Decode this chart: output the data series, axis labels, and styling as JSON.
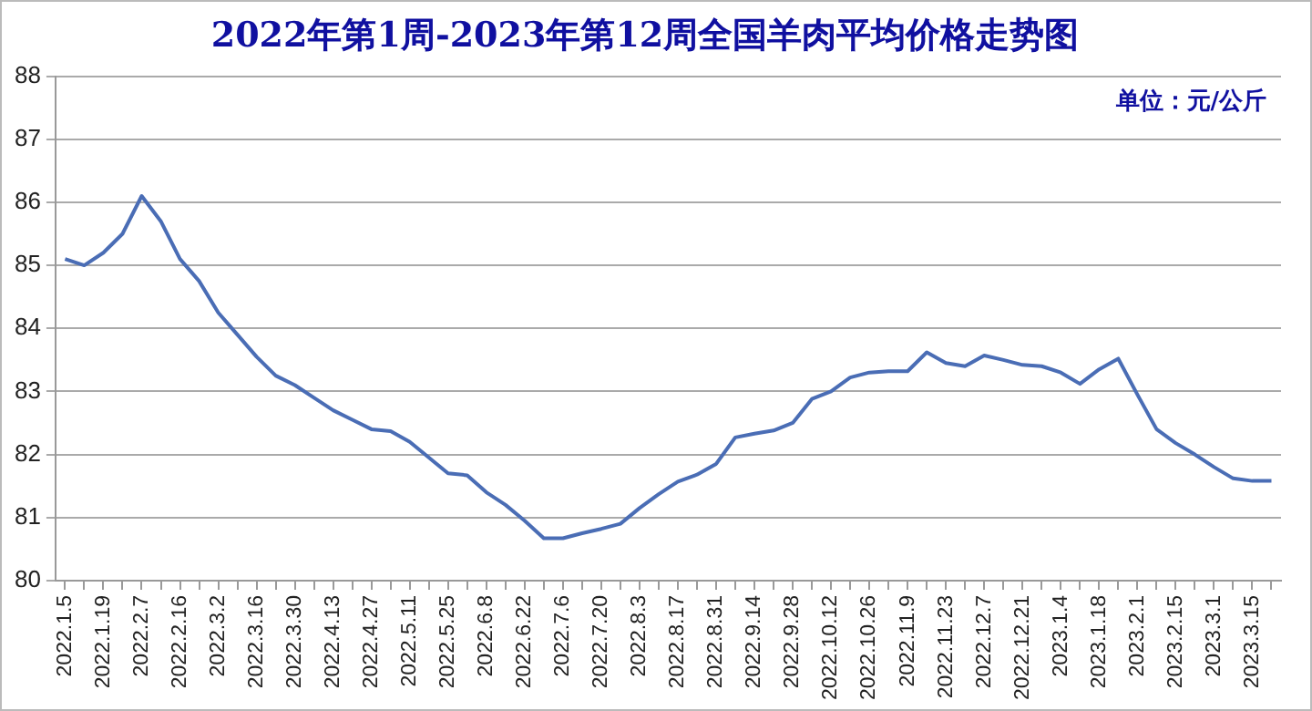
{
  "chart_data": {
    "type": "line",
    "title": "2022年第1周-2023年第12周全国羊肉平均价格走势图",
    "annotations": [
      "单位：元/公斤"
    ],
    "categories": [
      "2022.1.5",
      null,
      "2022.1.19",
      null,
      "2022.2.7",
      null,
      "2022.2.16",
      null,
      "2022.3.2",
      null,
      "2022.3.16",
      null,
      "2022.3.30",
      null,
      "2022.4.13",
      null,
      "2022.4.27",
      null,
      "2022.5.11",
      null,
      "2022.5.25",
      null,
      "2022.6.8",
      null,
      "2022.6.22",
      null,
      "2022.7.6",
      null,
      "2022.7.20",
      null,
      "2022.8.3",
      null,
      "2022.8.17",
      null,
      "2022.8.31",
      null,
      "2022.9.14",
      null,
      "2022.9.28",
      null,
      "2022.10.12",
      null,
      "2022.10.26",
      null,
      "2022.11.9",
      null,
      "2022.11.23",
      null,
      "2022.12.7",
      null,
      "2022.12.21",
      null,
      "2023.1.4",
      null,
      "2023.1.18",
      null,
      "2023.2.1",
      null,
      "2023.2.15",
      null,
      "2023.3.1",
      null,
      "2023.3.15",
      null
    ],
    "series": [
      {
        "color": "#4a6db5",
        "values": [
          85.1,
          85.0,
          85.2,
          85.5,
          86.1,
          85.7,
          85.1,
          84.75,
          84.25,
          83.9,
          83.55,
          83.25,
          83.1,
          82.9,
          82.7,
          82.55,
          82.4,
          82.37,
          82.2,
          81.95,
          81.7,
          81.67,
          81.4,
          81.2,
          80.95,
          80.67,
          80.67,
          80.75,
          80.82,
          80.9,
          81.15,
          81.37,
          81.57,
          81.68,
          81.85,
          82.27,
          82.33,
          82.38,
          82.5,
          82.88,
          83.0,
          83.22,
          83.3,
          83.32,
          83.32,
          83.62,
          83.45,
          83.4,
          83.57,
          83.5,
          83.42,
          83.4,
          83.3,
          83.12,
          83.35,
          83.52,
          82.95,
          82.4,
          82.18,
          82.0,
          81.8,
          81.62,
          81.58,
          81.58
        ]
      }
    ],
    "ylim": [
      80,
      88
    ],
    "yticks": [
      80,
      81,
      82,
      83,
      84,
      85,
      86,
      87,
      88
    ],
    "grid": "y",
    "legend": false,
    "marker": "none",
    "line_style": "solid"
  }
}
